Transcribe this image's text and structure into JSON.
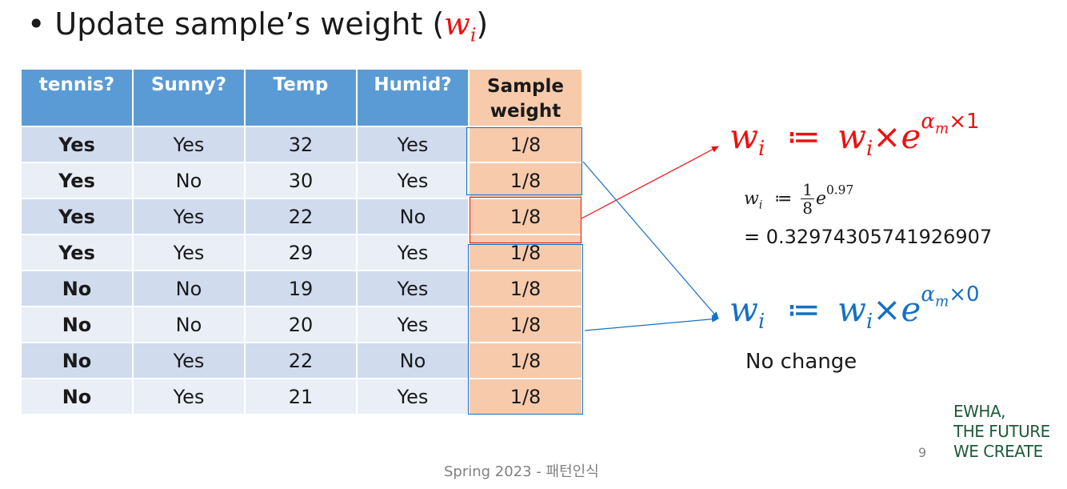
{
  "title": {
    "text": "Update sample’s weight",
    "math_open": "(",
    "math_var": "w",
    "math_sub": "i",
    "math_close": ")"
  },
  "table": {
    "headers": [
      "tennis?",
      "Sunny?",
      "Temp",
      "Humid?"
    ],
    "weight_header_line1": "Sample",
    "weight_header_line2": "weight",
    "rows": [
      [
        "Yes",
        "Yes",
        "32",
        "Yes",
        "1/8"
      ],
      [
        "Yes",
        "No",
        "30",
        "Yes",
        "1/8"
      ],
      [
        "Yes",
        "Yes",
        "22",
        "No",
        "1/8"
      ],
      [
        "Yes",
        "Yes",
        "29",
        "Yes",
        "1/8"
      ],
      [
        "No",
        "No",
        "19",
        "Yes",
        "1/8"
      ],
      [
        "No",
        "No",
        "20",
        "Yes",
        "1/8"
      ],
      [
        "No",
        "Yes",
        "22",
        "No",
        "1/8"
      ],
      [
        "No",
        "Yes",
        "21",
        "Yes",
        "1/8"
      ]
    ]
  },
  "formula_red": {
    "lhs_var": "w",
    "lhs_sub": "i",
    "assign": "≔",
    "rhs_var": "w",
    "rhs_sub": "i",
    "times": "×",
    "base": "e",
    "exp_var": "α",
    "exp_sub": "m",
    "exp_tail": "×1"
  },
  "calc": {
    "var": "w",
    "sub": "i",
    "assign": "≔",
    "frac_num": "1",
    "frac_den": "8",
    "base": "e",
    "exp": "0.97",
    "result": "= 0.32974305741926907"
  },
  "formula_blue": {
    "lhs_var": "w",
    "lhs_sub": "i",
    "assign": "≔",
    "rhs_var": "w",
    "rhs_sub": "i",
    "times": "×",
    "base": "e",
    "exp_var": "α",
    "exp_sub": "m",
    "exp_tail": "×0"
  },
  "no_change": "No change",
  "logo": {
    "line1": "EWHA,",
    "line2": "THE FUTURE",
    "line3": "WE CREATE"
  },
  "page_number": "9",
  "footer": "Spring 2023 - 패턴인식",
  "colors": {
    "header_blue": "#5b9bd5",
    "weight_peach": "#f7caac",
    "row_dark": "#d0dbee",
    "row_light": "#e9eef7",
    "accent_red": "#ee1111",
    "accent_blue": "#1670c4",
    "logo_green": "#1e5a3c"
  }
}
